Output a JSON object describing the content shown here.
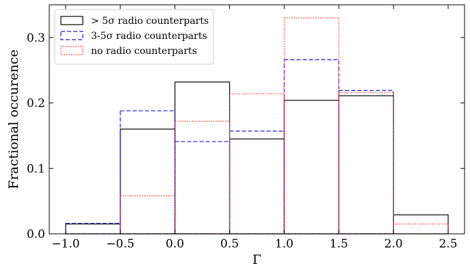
{
  "chart_data": {
    "type": "histogram",
    "bin_edges": [
      -1.0,
      -0.5,
      0.0,
      0.5,
      1.0,
      1.5,
      2.0,
      2.5
    ],
    "series": [
      {
        "name": "> 5σ radio counterparts",
        "values": [
          0.015,
          0.16,
          0.232,
          0.145,
          0.204,
          0.211,
          0.029
        ],
        "color": "#000000",
        "linestyle": "solid"
      },
      {
        "name": "3-5σ radio counterparts",
        "values": [
          0.016,
          0.188,
          0.141,
          0.157,
          0.266,
          0.219,
          0.0
        ],
        "color": "#1a1acc",
        "linestyle": "dashed"
      },
      {
        "name": "no radio counterparts",
        "values": [
          0.0,
          0.058,
          0.172,
          0.214,
          0.33,
          0.216,
          0.015
        ],
        "color": "#ff2a2a",
        "linestyle": "dotted"
      }
    ],
    "xlabel": "Γ",
    "ylabel": "Fractional occurence",
    "xlim": [
      -1.15,
      2.65
    ],
    "ylim": [
      0.0,
      0.35
    ],
    "xticks": [
      -1.0,
      -0.5,
      0.0,
      0.5,
      1.0,
      1.5,
      2.0,
      2.5
    ],
    "xtick_labels": [
      "−1.0",
      "−0.5",
      "0.0",
      "0.5",
      "1.0",
      "1.5",
      "2.0",
      "2.5"
    ],
    "yticks": [
      0.0,
      0.1,
      0.2,
      0.3
    ],
    "ytick_labels": [
      "0.0",
      "0.1",
      "0.2",
      "0.3"
    ],
    "grid": false,
    "legend_position": "top-left"
  }
}
